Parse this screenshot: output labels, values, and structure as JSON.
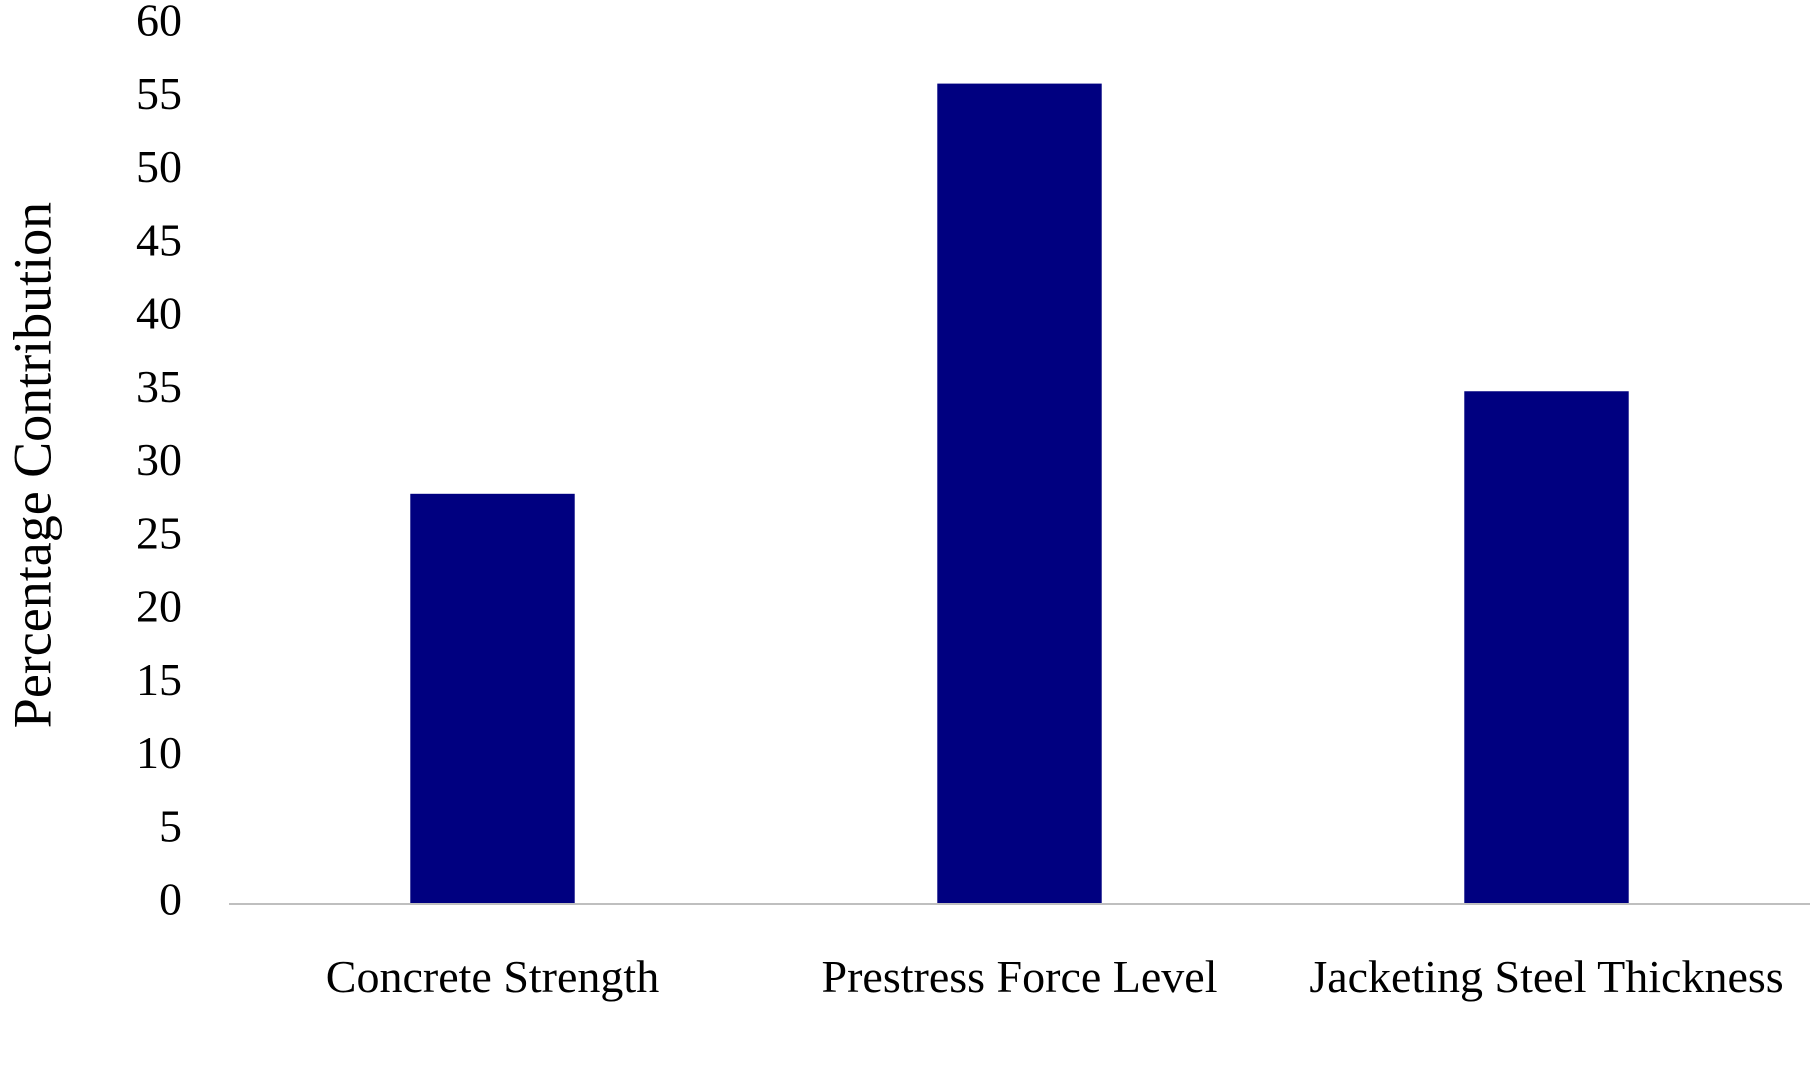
{
  "chart_data": {
    "type": "bar",
    "y_label": "Percentage Contribution",
    "categories": [
      "Concrete Strength",
      "Prestress Force Level",
      "Jacketing Steel Thickness"
    ],
    "values": [
      28,
      56,
      35
    ],
    "color": "#000080",
    "ylim": [
      0,
      60
    ],
    "yticks": [
      0,
      5,
      10,
      15,
      20,
      25,
      30,
      35,
      40,
      45,
      50,
      55,
      60
    ],
    "grid": false
  }
}
